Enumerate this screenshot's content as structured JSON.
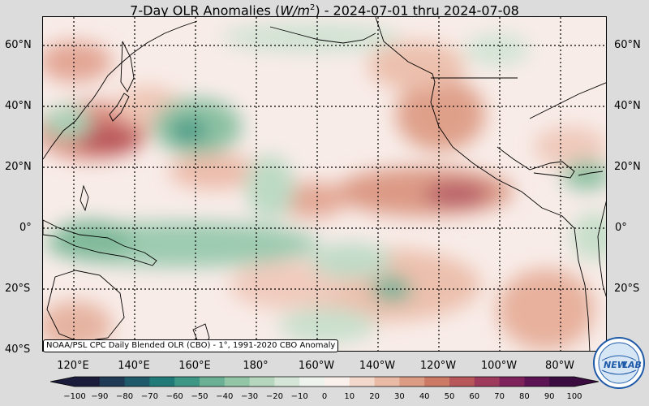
{
  "title": {
    "prefix": "7-Day OLR Anomalies (",
    "unit_base": "W/m",
    "unit_exp": "2",
    "suffix": ") - 2024-07-01 thru 2024-07-08"
  },
  "lat_labels": [
    "60°N",
    "40°N",
    "20°N",
    "0°",
    "20°S",
    "40°S"
  ],
  "lon_labels": [
    "120°E",
    "140°E",
    "160°E",
    "180°",
    "160°W",
    "140°W",
    "120°W",
    "100°W",
    "80°W"
  ],
  "source_note": "NOAA/PSL CPC Daily Blended OLR (CBO) - 1°, 1991-2020 CBO Anomaly",
  "colorbar": {
    "ticks": [
      "−100",
      "−90",
      "−80",
      "−70",
      "−60",
      "−50",
      "−40",
      "−30",
      "−20",
      "−10",
      "0",
      "10",
      "20",
      "30",
      "40",
      "50",
      "60",
      "70",
      "80",
      "90",
      "100"
    ],
    "colors": [
      "#1b1c3b",
      "#1f3a55",
      "#1f5a6a",
      "#1f7a78",
      "#3e9785",
      "#6bb095",
      "#92c4a6",
      "#b6d7bd",
      "#d5e6d6",
      "#eef3ee",
      "#fbf1ec",
      "#f3d9cc",
      "#e9bba7",
      "#dc9b83",
      "#cc7a66",
      "#b8575a",
      "#9e3a5c",
      "#7e225c",
      "#5c1454",
      "#3b0c40"
    ]
  },
  "logo": {
    "name": "NEWLAB",
    "text_a": "NEW",
    "text_b": "LAB"
  },
  "colors": {
    "background": "#dcdcdc",
    "positive_anomaly": "#c9705e",
    "negative_anomaly": "#5fa688",
    "neutral": "#f8ece8"
  }
}
